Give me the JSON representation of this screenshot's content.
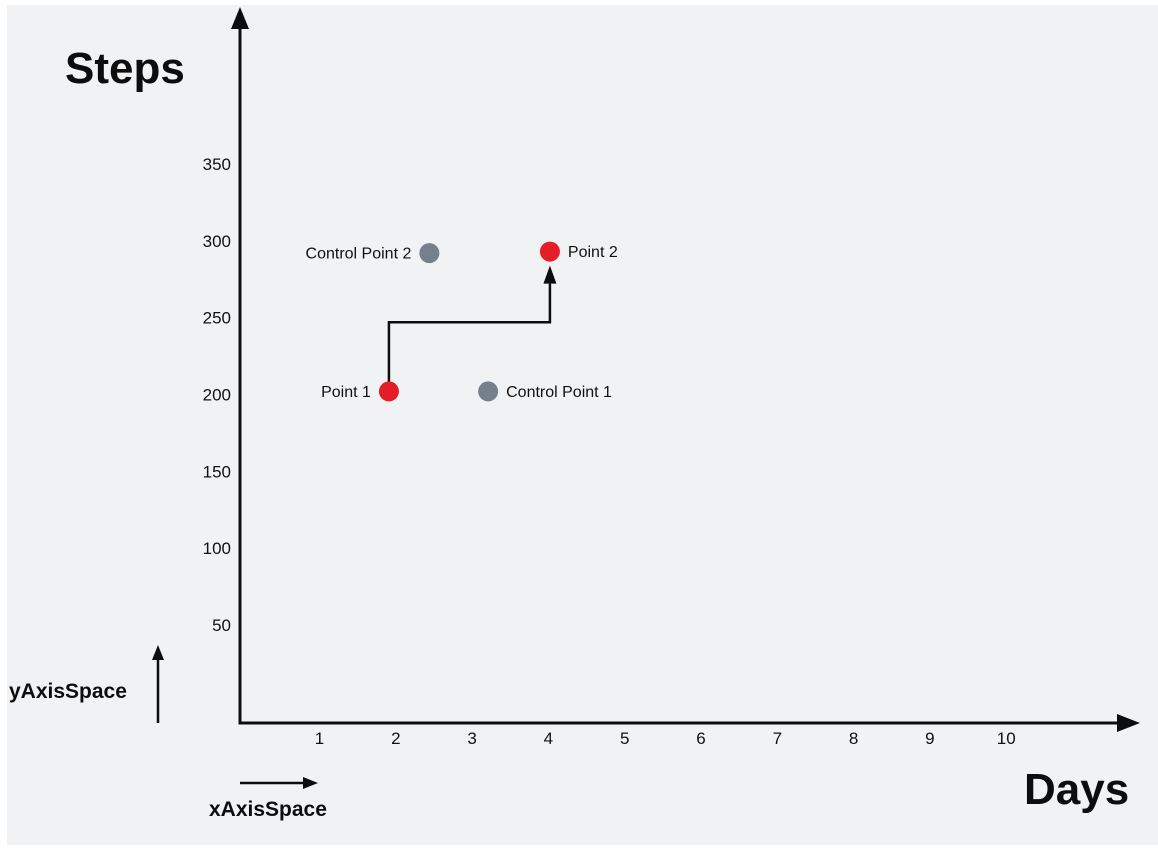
{
  "background": {
    "page": "#ffffff",
    "canvas": "#f1f2f4"
  },
  "colors": {
    "line": "#0d0d0d",
    "text": "#111111",
    "red": "#e41e26",
    "gray": "#76808c"
  },
  "chart_data": {
    "type": "scatter",
    "title": "",
    "ylabel": "Steps",
    "xlabel": "Days",
    "x_ticks": [
      1,
      2,
      3,
      4,
      5,
      6,
      7,
      8,
      9,
      10
    ],
    "y_ticks": [
      50,
      100,
      150,
      200,
      250,
      300,
      350
    ],
    "xlim": [
      0,
      11.7
    ],
    "ylim": [
      0,
      430
    ],
    "grid": false,
    "legend": "none",
    "points": [
      {
        "label": "Point 1",
        "x": 1.91,
        "y": 202,
        "color": "red",
        "label_side": "left"
      },
      {
        "label": "Point 2",
        "x": 4.02,
        "y": 293,
        "color": "red",
        "label_side": "right"
      },
      {
        "label": "Control Point 1",
        "x": 3.21,
        "y": 202,
        "color": "gray",
        "label_side": "right"
      },
      {
        "label": "Control Point 2",
        "x": 2.44,
        "y": 292,
        "color": "gray",
        "label_side": "left"
      }
    ],
    "connector": {
      "from": "Point 1",
      "to": "Point 2",
      "style": "elbow",
      "elbow_step_y": 247,
      "arrowhead": "end"
    },
    "axis_annotations": {
      "y_space_label": "yAxisSpace",
      "x_space_label": "xAxisSpace"
    }
  }
}
